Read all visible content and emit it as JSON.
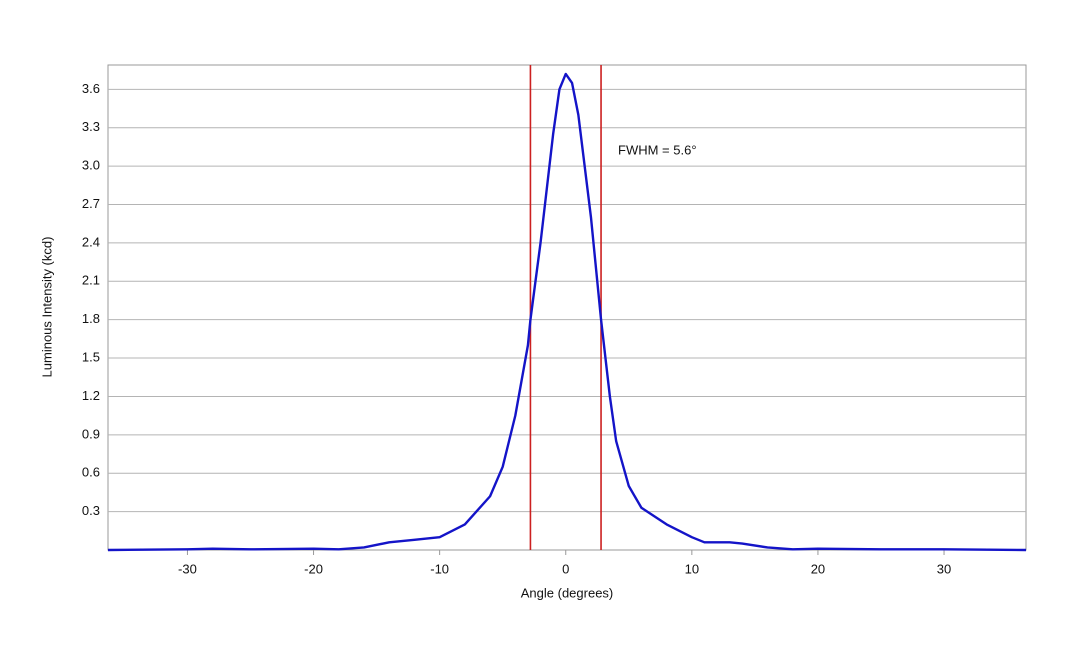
{
  "chart_data": {
    "type": "line",
    "x_label": "Angle (degrees)",
    "y_label": "Luminous Intensity (kcd)",
    "annotation": "FWHM = 5.6°",
    "x": [
      -36.3,
      -30,
      -28,
      -25,
      -20,
      -18,
      -16,
      -14,
      -12,
      -10,
      -8,
      -6,
      -5,
      -4,
      -3,
      -2.8,
      -2,
      -1,
      -0.5,
      0,
      0.5,
      1,
      2,
      2.8,
      3.5,
      4,
      5,
      6,
      8,
      10,
      11,
      13,
      14,
      16,
      18,
      20,
      25,
      30,
      36.5
    ],
    "series": [
      {
        "color": "#1414c8",
        "values": [
          0.0,
          0.005,
          0.01,
          0.005,
          0.01,
          0.005,
          0.02,
          0.06,
          0.08,
          0.1,
          0.2,
          0.42,
          0.65,
          1.05,
          1.6,
          1.8,
          2.4,
          3.25,
          3.6,
          3.72,
          3.65,
          3.4,
          2.6,
          1.8,
          1.2,
          0.85,
          0.5,
          0.33,
          0.2,
          0.1,
          0.06,
          0.06,
          0.05,
          0.02,
          0.005,
          0.01,
          0.005,
          0.005,
          0.0
        ]
      }
    ],
    "vlines": [
      -2.8,
      2.8
    ],
    "vline_color": "#cc2020",
    "xlim": [
      -36.3,
      36.5
    ],
    "ylim": [
      0,
      3.79
    ],
    "xticks": [
      -30,
      -20,
      -10,
      0,
      10,
      20,
      30
    ],
    "yticks": [
      0.3,
      0.6,
      0.9,
      1.2,
      1.5,
      1.8,
      2.1,
      2.4,
      2.7,
      {
        "value": 3,
        "label": "3.0"
      },
      3.3,
      3.6
    ],
    "grid": true
  }
}
